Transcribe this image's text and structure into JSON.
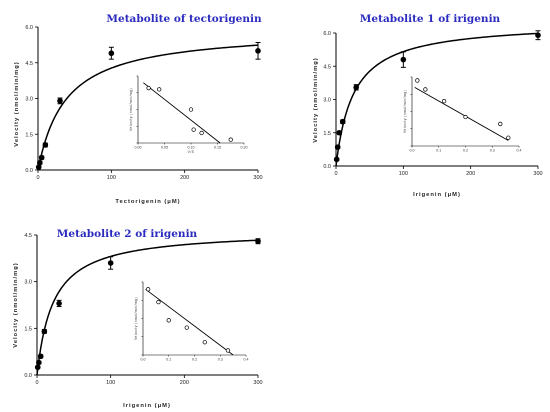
{
  "figure": {
    "caption": ""
  },
  "chart_data": [
    {
      "type": "scatter",
      "title": "Metabolite of tectorigenin",
      "xlabel": "Tectorigenin (μM)",
      "ylabel": "Velocity (nmol/min/mg)",
      "xlim": [
        0,
        300
      ],
      "ylim": [
        0,
        6.0
      ],
      "xticks": [
        "0",
        "100",
        "200",
        "300"
      ],
      "yticks": [
        "0.0",
        "1.5",
        "3.0",
        "4.5",
        "6.0"
      ],
      "points": {
        "x": [
          1,
          2.5,
          5,
          10,
          30,
          100,
          300
        ],
        "y": [
          0.12,
          0.3,
          0.52,
          1.05,
          2.9,
          4.9,
          5.0
        ],
        "err": [
          0.04,
          0.05,
          0.06,
          0.08,
          0.12,
          0.25,
          0.35
        ]
      },
      "fit": {
        "vmax": 5.9,
        "km": 38
      },
      "inset": {
        "type": "scatter",
        "xlabel": "V/S",
        "ylabel": "Velocity (nmol/min/mg)",
        "xlim": [
          0,
          0.2
        ],
        "ylim": [
          0,
          1
        ],
        "xticks": [
          "0.00",
          "0.05",
          "0.10",
          "0.15",
          "0.20"
        ],
        "x": [
          0.02,
          0.04,
          0.1,
          0.105,
          0.12,
          0.175
        ],
        "y": [
          0.82,
          0.8,
          0.5,
          0.2,
          0.15,
          0.05
        ],
        "line": [
          [
            0.01,
            0.9
          ],
          [
            0.155,
            0.0
          ]
        ]
      }
    },
    {
      "type": "scatter",
      "title": "Metabolite 1 of irigenin",
      "xlabel": "Irigenin (μM)",
      "ylabel": "Velocity (nmol/min/mg)",
      "xlim": [
        0,
        300
      ],
      "ylim": [
        0,
        6.0
      ],
      "xticks": [
        "0",
        "100",
        "200",
        "300"
      ],
      "yticks": [
        "0.0",
        "1.5",
        "3.0",
        "4.5",
        "6.0"
      ],
      "points": {
        "x": [
          1,
          2.5,
          5,
          10,
          30,
          100,
          300
        ],
        "y": [
          0.3,
          0.85,
          1.5,
          2.0,
          3.55,
          4.8,
          5.9
        ],
        "err": [
          0.05,
          0.06,
          0.07,
          0.08,
          0.12,
          0.35,
          0.2
        ]
      },
      "fit": {
        "vmax": 6.5,
        "km": 26
      },
      "inset": {
        "type": "scatter",
        "xlabel": "",
        "ylabel": "Velocity (nmol/min/mg)",
        "xlim": [
          0,
          0.4
        ],
        "ylim": [
          0,
          1
        ],
        "xticks": [
          "0.0",
          "0.1",
          "0.2",
          "0.3",
          "0.4"
        ],
        "x": [
          0.02,
          0.05,
          0.12,
          0.2,
          0.33,
          0.36
        ],
        "y": [
          0.95,
          0.82,
          0.65,
          0.42,
          0.32,
          0.12
        ],
        "line": [
          [
            0.01,
            0.85
          ],
          [
            0.36,
            0.08
          ]
        ]
      }
    },
    {
      "type": "scatter",
      "title": "Metabolite 2 of irigenin",
      "xlabel": "Irigenin (μM)",
      "ylabel": "Velocity (nmol/min/mg)",
      "xlim": [
        0,
        300
      ],
      "ylim": [
        0,
        4.5
      ],
      "xticks": [
        "0",
        "100",
        "200",
        "300"
      ],
      "yticks": [
        "0.0",
        "1.5",
        "3.0",
        "4.5"
      ],
      "points": {
        "x": [
          1,
          2.5,
          5,
          10,
          30,
          100,
          300
        ],
        "y": [
          0.25,
          0.4,
          0.6,
          1.4,
          2.3,
          3.6,
          4.3
        ],
        "err": [
          0.03,
          0.04,
          0.05,
          0.06,
          0.1,
          0.2,
          0.08
        ]
      },
      "fit": {
        "vmax": 4.65,
        "km": 22
      },
      "inset": {
        "type": "scatter",
        "xlabel": "",
        "ylabel": "Velocity (nmol/min/mg)",
        "xlim": [
          0,
          0.4
        ],
        "ylim": [
          0,
          0.8
        ],
        "xticks": [
          "0.0",
          "0.1",
          "0.2",
          "0.3",
          "0.4"
        ],
        "x": [
          0.02,
          0.06,
          0.1,
          0.17,
          0.24,
          0.33
        ],
        "y": [
          0.72,
          0.58,
          0.38,
          0.3,
          0.14,
          0.05
        ],
        "line": [
          [
            0.01,
            0.72
          ],
          [
            0.35,
            0.0
          ]
        ]
      }
    }
  ]
}
